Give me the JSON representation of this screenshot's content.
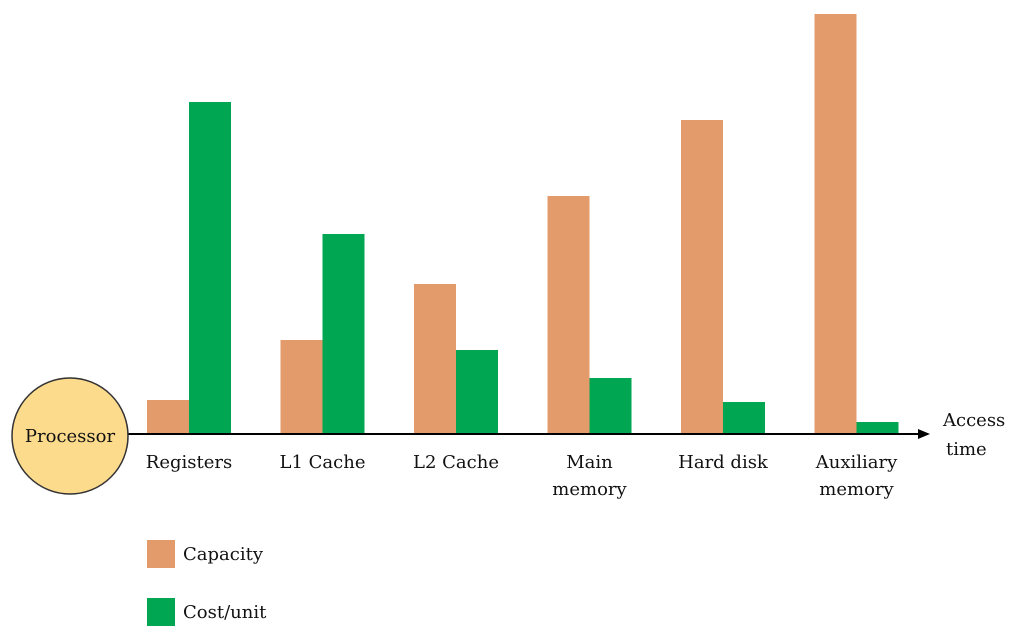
{
  "chart_data": {
    "type": "bar",
    "categories": [
      [
        "Registers"
      ],
      [
        "L1 Cache"
      ],
      [
        "L2 Cache"
      ],
      [
        "Main",
        "memory"
      ],
      [
        "Hard disk"
      ],
      [
        "Auxiliary",
        "memory"
      ]
    ],
    "series": [
      {
        "name": "Capacity",
        "color": "#e39b6c",
        "values": [
          8.5,
          23.5,
          37.5,
          59.5,
          78.5,
          105
        ]
      },
      {
        "name": "Cost/unit",
        "color": "#00a651",
        "values": [
          83,
          50,
          21,
          14,
          8,
          3
        ]
      }
    ],
    "ylim": [
      0,
      105
    ],
    "x_axis_label": [
      "Access",
      "time"
    ],
    "processor_label": "Processor",
    "processor_color": "#fddb8d",
    "legend_position": "bottom-left"
  }
}
